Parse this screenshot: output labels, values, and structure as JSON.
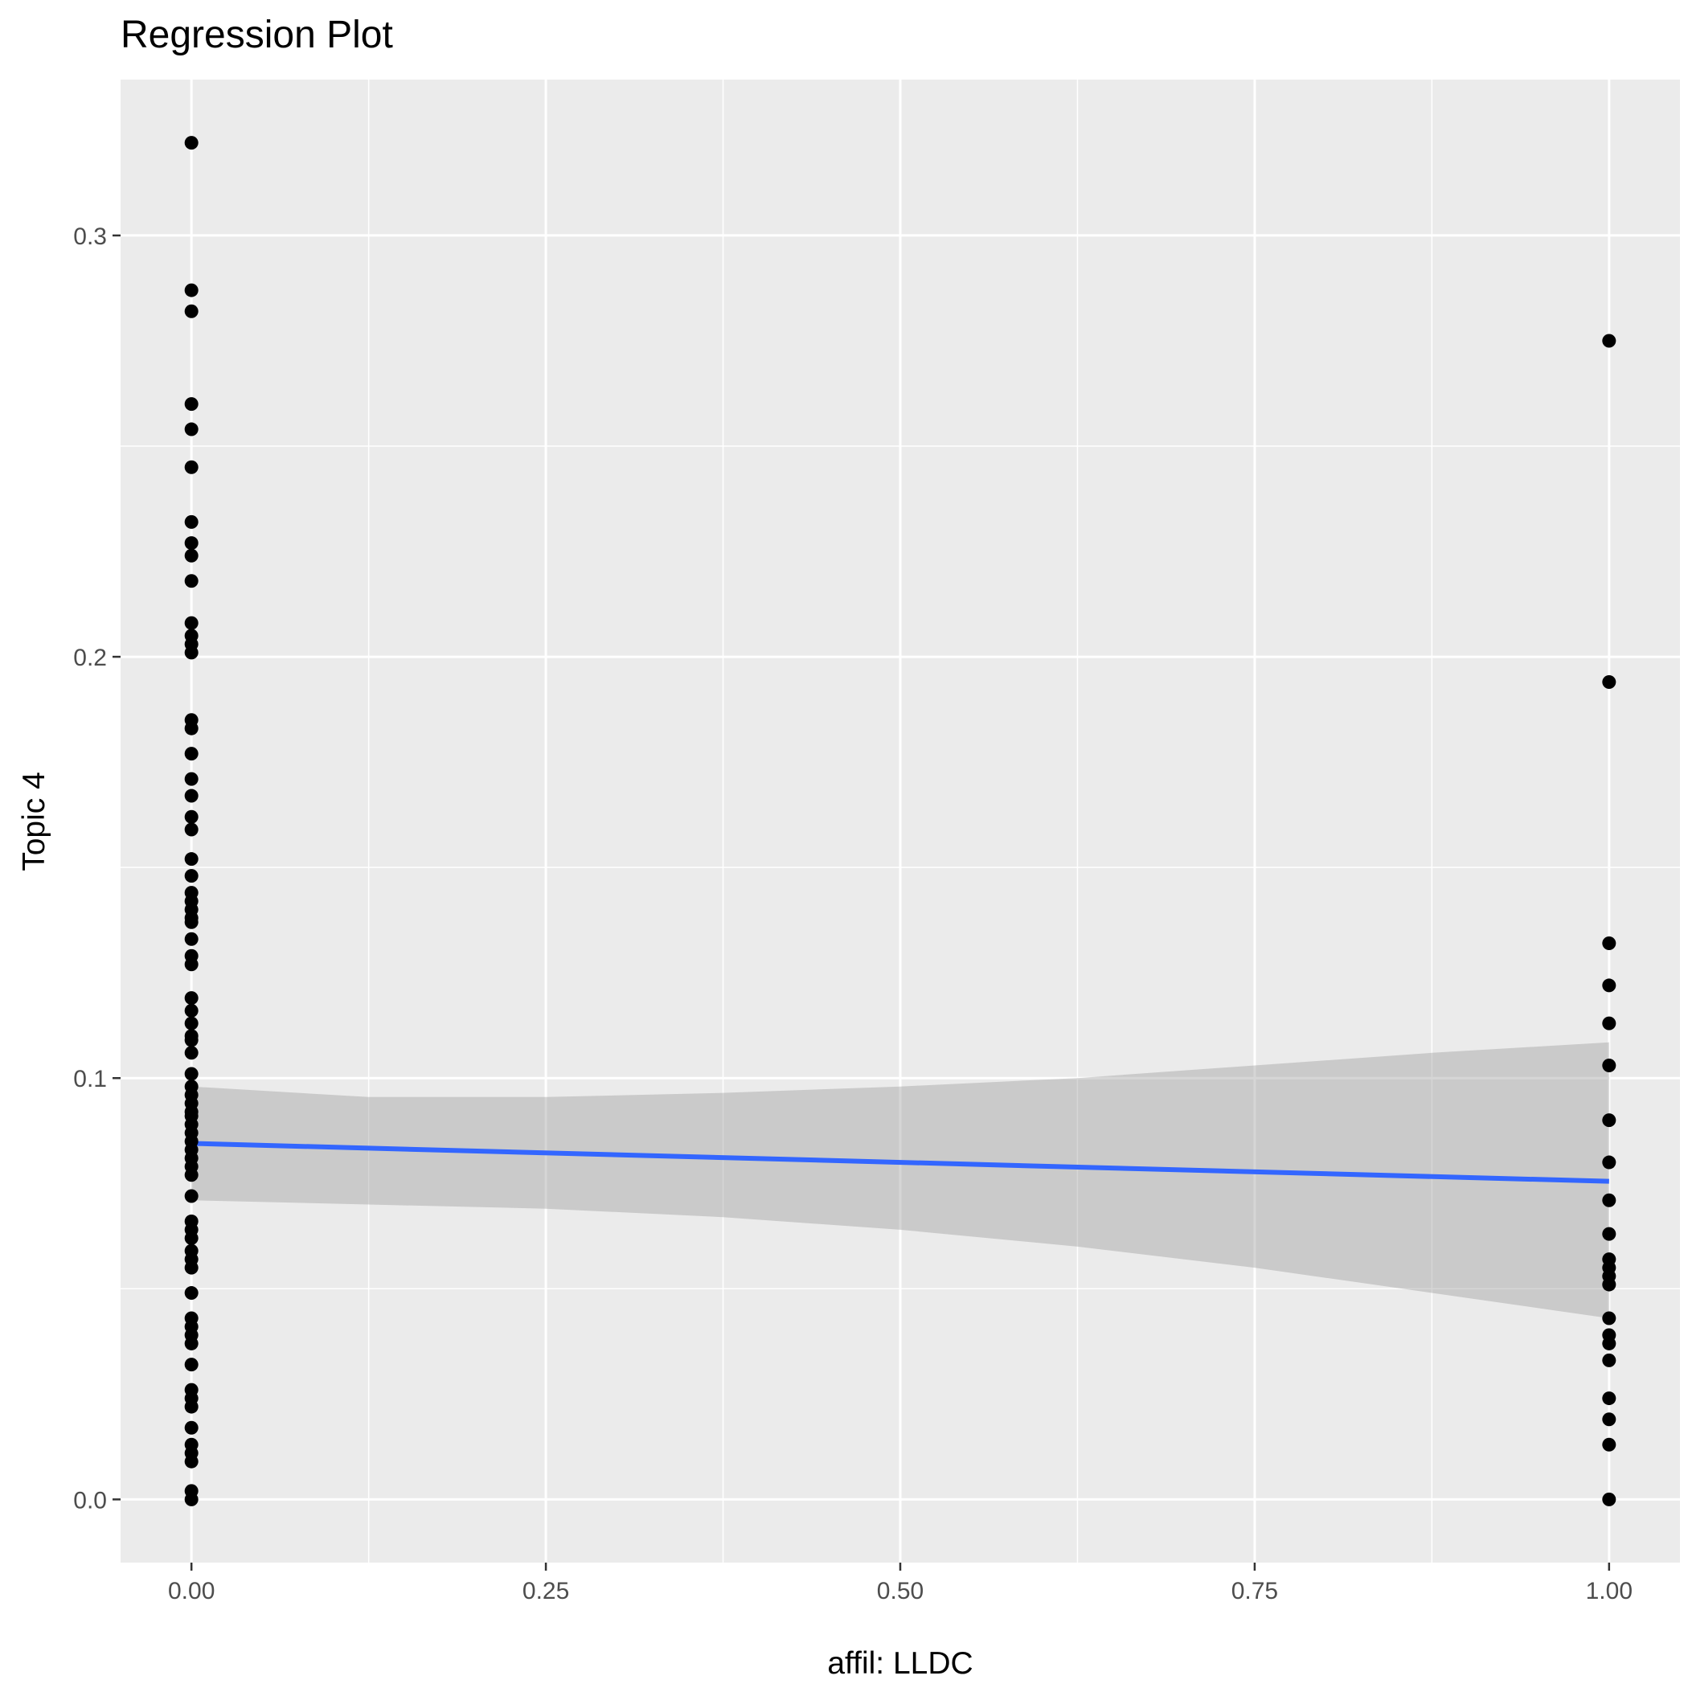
{
  "chart_data": {
    "type": "scatter",
    "title": "Regression Plot",
    "xlabel": "affil: LLDC",
    "ylabel": "Topic 4",
    "xlim": [
      -0.05,
      1.05
    ],
    "ylim": [
      -0.015,
      0.337
    ],
    "x_ticks": [
      0.0,
      0.25,
      0.5,
      0.75,
      1.0
    ],
    "x_tick_labels": [
      "0.00",
      "0.25",
      "0.50",
      "0.75",
      "1.00"
    ],
    "y_ticks": [
      0.0,
      0.1,
      0.2,
      0.3
    ],
    "y_tick_labels": [
      "0.0",
      "0.1",
      "0.2",
      "0.3"
    ],
    "grid": true,
    "legend": "none",
    "colors": {
      "panel": "#ebebeb",
      "grid": "#ffffff",
      "points": "#000000",
      "fit_line": "#3366ff",
      "ribbon": "#c8c8c8"
    },
    "points": {
      "x0": [
        0.322,
        0.287,
        0.282,
        0.26,
        0.254,
        0.245,
        0.232,
        0.227,
        0.224,
        0.218,
        0.208,
        0.205,
        0.203,
        0.201,
        0.185,
        0.183,
        0.177,
        0.171,
        0.167,
        0.162,
        0.159,
        0.152,
        0.148,
        0.144,
        0.142,
        0.14,
        0.138,
        0.137,
        0.133,
        0.129,
        0.127,
        0.119,
        0.116,
        0.113,
        0.11,
        0.109,
        0.106,
        0.101,
        0.098,
        0.096,
        0.094,
        0.092,
        0.091,
        0.089,
        0.087,
        0.085,
        0.083,
        0.081,
        0.079,
        0.077,
        0.072,
        0.066,
        0.064,
        0.062,
        0.059,
        0.057,
        0.055,
        0.049,
        0.043,
        0.041,
        0.039,
        0.037,
        0.032,
        0.026,
        0.024,
        0.022,
        0.017,
        0.013,
        0.011,
        0.009,
        0.002,
        0.0
      ],
      "x1": [
        0.275,
        0.194,
        0.132,
        0.122,
        0.113,
        0.103,
        0.09,
        0.08,
        0.071,
        0.063,
        0.057,
        0.055,
        0.053,
        0.051,
        0.043,
        0.039,
        0.037,
        0.033,
        0.024,
        0.019,
        0.013,
        0.0
      ]
    },
    "regression": {
      "x": [
        0.0,
        1.0
      ],
      "y": [
        0.0845,
        0.0755
      ],
      "ci_x": [
        0.0,
        0.125,
        0.25,
        0.375,
        0.5,
        0.625,
        0.75,
        0.875,
        1.0
      ],
      "ci_lower": [
        0.071,
        0.07,
        0.069,
        0.067,
        0.064,
        0.06,
        0.055,
        0.049,
        0.043
      ],
      "ci_upper": [
        0.098,
        0.0955,
        0.0955,
        0.0965,
        0.098,
        0.1,
        0.103,
        0.106,
        0.1085
      ]
    }
  }
}
